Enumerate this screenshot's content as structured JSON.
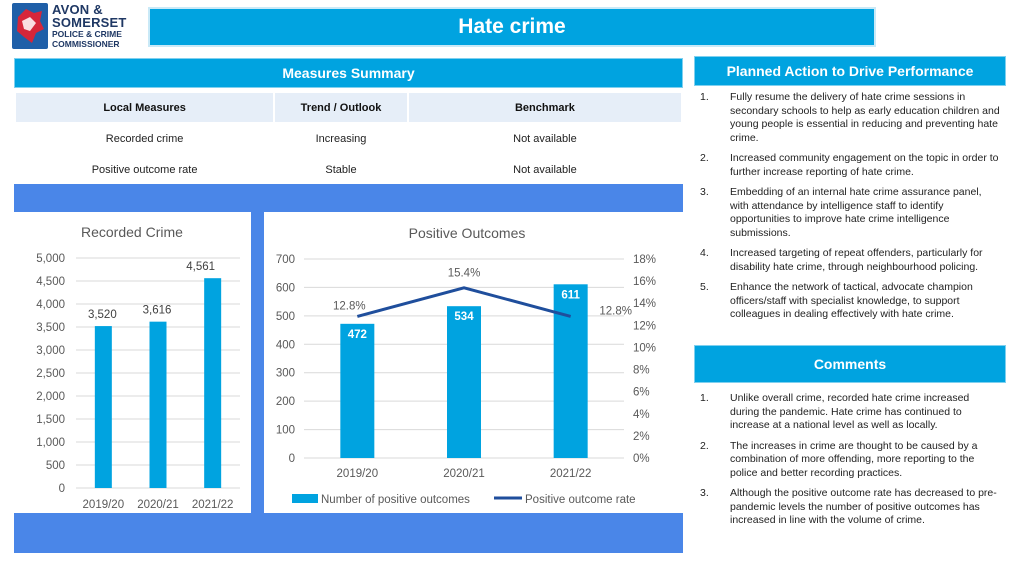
{
  "logo": {
    "line1": "AVON &",
    "line2": "SOMERSET",
    "line3": "POLICE & CRIME",
    "line4": "COMMISSIONER"
  },
  "title": "Hate crime",
  "measures": {
    "heading": "Measures Summary",
    "columns": [
      "Local Measures",
      "Trend / Outlook",
      "Benchmark"
    ],
    "rows": [
      [
        "Recorded crime",
        "Increasing",
        "Not available"
      ],
      [
        "Positive outcome rate",
        "Stable",
        "Not available"
      ]
    ]
  },
  "planned_action": {
    "heading": "Planned Action to Drive Performance",
    "items": [
      {
        "num": "1.",
        "text": "Fully resume the delivery of hate crime sessions in secondary schools to help as early education children and young people is essential in reducing and preventing hate crime."
      },
      {
        "num": "2.",
        "text": "Increased community engagement on the topic in order to further increase reporting of hate crime."
      },
      {
        "num": "3.",
        "text": "Embedding of an internal hate crime assurance panel, with attendance by intelligence staff to identify opportunities to improve hate crime intelligence submissions."
      },
      {
        "num": "4.",
        "text": "Increased targeting of repeat offenders, particularly for disability hate crime, through neighbourhood policing."
      },
      {
        "num": "5.",
        "text": "Enhance the network of tactical, advocate champion officers/staff with specialist knowledge, to support colleagues in dealing effectively with hate crime."
      }
    ]
  },
  "comments": {
    "heading": "Comments",
    "items": [
      {
        "num": "1.",
        "text": "Unlike overall crime, recorded hate crime increased during the pandemic. Hate crime has continued to increase at a national level as well as locally."
      },
      {
        "num": "2.",
        "text": "The increases in crime are thought to be caused by a combination of more offending, more reporting to the police and better recording practices."
      },
      {
        "num": "3.",
        "text": "Although the positive outcome rate has decreased to pre-pandemic levels the number of positive outcomes has increased in line with the volume of crime."
      }
    ]
  },
  "colors": {
    "accent": "#00a3e0",
    "panel": "#4a86e8",
    "bar": "#00a3e0",
    "line": "#1f4e9c"
  },
  "chart_data": [
    {
      "type": "bar",
      "title": "Recorded Crime",
      "categories": [
        "2019/20",
        "2020/21",
        "2021/22"
      ],
      "values": [
        3520,
        3616,
        4561
      ],
      "value_labels": [
        "3,520",
        "3,616",
        "4,561"
      ],
      "ylim": [
        0,
        5000
      ],
      "yticks": [
        "0",
        "500",
        "1,000",
        "1,500",
        "2,000",
        "2,500",
        "3,000",
        "3,500",
        "4,000",
        "4,500",
        "5,000"
      ],
      "grid": true
    },
    {
      "type": "bar",
      "title": "Positive Outcomes",
      "categories": [
        "2019/20",
        "2020/21",
        "2021/22"
      ],
      "series": [
        {
          "name": "Number of positive outcomes",
          "type": "bar",
          "axis": "left",
          "values": [
            472,
            534,
            611
          ],
          "labels": [
            "472",
            "534",
            "611"
          ]
        },
        {
          "name": "Positive outcome rate",
          "type": "line",
          "axis": "right",
          "values": [
            12.8,
            15.4,
            12.8
          ],
          "labels": [
            "12.8%",
            "15.4%",
            "12.8%"
          ]
        }
      ],
      "ylim": [
        0,
        700
      ],
      "yticks": [
        "0",
        "100",
        "200",
        "300",
        "400",
        "500",
        "600",
        "700"
      ],
      "y2lim": [
        0,
        18
      ],
      "y2ticks": [
        "0%",
        "2%",
        "4%",
        "6%",
        "8%",
        "10%",
        "12%",
        "14%",
        "16%",
        "18%"
      ],
      "legend": "bottom",
      "grid": true
    }
  ]
}
